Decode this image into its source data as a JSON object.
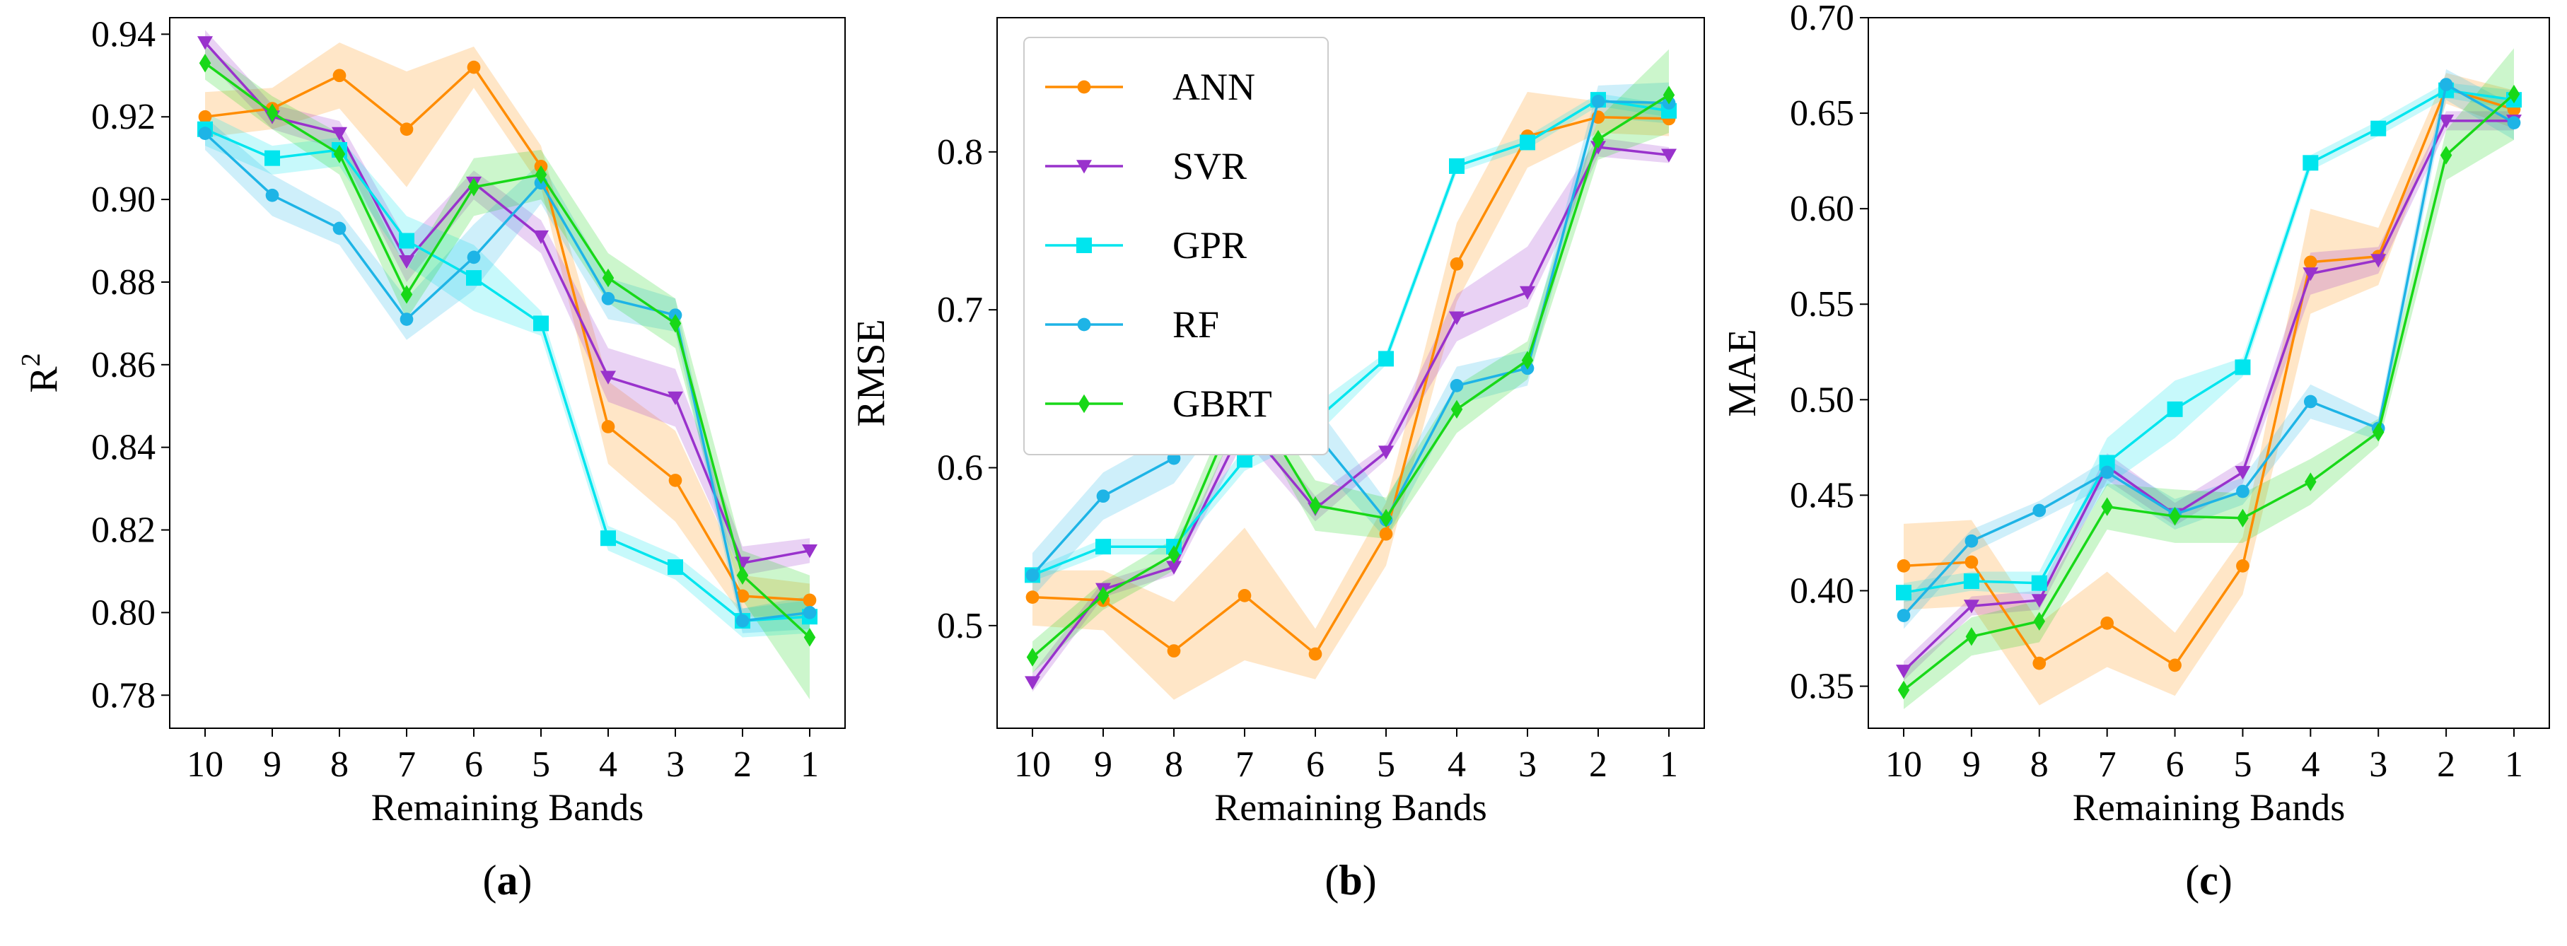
{
  "chart_data": [
    {
      "type": "line",
      "panel_label": "(a)",
      "title": "",
      "xlabel": "Remaining Bands",
      "ylabel_main": "R",
      "ylabel_sup": "2",
      "categories": [
        "10",
        "9",
        "8",
        "7",
        "6",
        "5",
        "4",
        "3",
        "2",
        "1"
      ],
      "ylim": [
        0.772,
        0.944
      ],
      "yticks": [
        0.78,
        0.8,
        0.82,
        0.84,
        0.86,
        0.88,
        0.9,
        0.92,
        0.94
      ],
      "ytick_labels": [
        "0.78",
        "0.80",
        "0.82",
        "0.84",
        "0.86",
        "0.88",
        "0.90",
        "0.92",
        "0.94"
      ],
      "series": [
        {
          "name": "ANN",
          "color": "#ff8c00",
          "marker": "circle",
          "values": [
            0.92,
            0.922,
            0.93,
            0.917,
            0.932,
            0.908,
            0.845,
            0.832,
            0.804,
            0.803
          ],
          "lower": [
            0.915,
            0.917,
            0.922,
            0.903,
            0.927,
            0.903,
            0.836,
            0.822,
            0.799,
            0.799
          ],
          "upper": [
            0.926,
            0.927,
            0.938,
            0.931,
            0.937,
            0.913,
            0.856,
            0.844,
            0.809,
            0.807
          ]
        },
        {
          "name": "SVR",
          "color": "#9932cc",
          "marker": "triangle-down",
          "values": [
            0.938,
            0.92,
            0.916,
            0.885,
            0.904,
            0.891,
            0.857,
            0.852,
            0.812,
            0.815
          ],
          "lower": [
            0.934,
            0.917,
            0.912,
            0.88,
            0.9,
            0.887,
            0.851,
            0.845,
            0.809,
            0.812
          ],
          "upper": [
            0.941,
            0.923,
            0.919,
            0.89,
            0.907,
            0.895,
            0.864,
            0.859,
            0.816,
            0.818
          ]
        },
        {
          "name": "GPR",
          "color": "#00e5ee",
          "marker": "square",
          "values": [
            0.917,
            0.91,
            0.912,
            0.89,
            0.881,
            0.87,
            0.818,
            0.811,
            0.798,
            0.799
          ],
          "lower": [
            0.913,
            0.906,
            0.908,
            0.884,
            0.873,
            0.867,
            0.815,
            0.808,
            0.794,
            0.795
          ],
          "upper": [
            0.921,
            0.913,
            0.915,
            0.896,
            0.889,
            0.873,
            0.821,
            0.814,
            0.801,
            0.803
          ]
        },
        {
          "name": "RF",
          "color": "#1eb4e6",
          "marker": "circle",
          "values": [
            0.916,
            0.901,
            0.893,
            0.871,
            0.886,
            0.904,
            0.876,
            0.872,
            0.798,
            0.8
          ],
          "lower": [
            0.912,
            0.896,
            0.889,
            0.866,
            0.878,
            0.899,
            0.871,
            0.868,
            0.795,
            0.796
          ],
          "upper": [
            0.92,
            0.906,
            0.897,
            0.876,
            0.894,
            0.909,
            0.881,
            0.876,
            0.801,
            0.804
          ]
        },
        {
          "name": "GBRT",
          "color": "#18d818",
          "marker": "diamond",
          "values": [
            0.933,
            0.921,
            0.911,
            0.877,
            0.903,
            0.906,
            0.881,
            0.87,
            0.809,
            0.794
          ],
          "lower": [
            0.929,
            0.917,
            0.906,
            0.871,
            0.896,
            0.9,
            0.875,
            0.864,
            0.803,
            0.779
          ],
          "upper": [
            0.937,
            0.925,
            0.916,
            0.883,
            0.91,
            0.912,
            0.887,
            0.876,
            0.815,
            0.809
          ]
        }
      ]
    },
    {
      "type": "line",
      "panel_label": "(b)",
      "title": "",
      "xlabel": "Remaining Bands",
      "ylabel_main": "RMSE",
      "ylabel_sup": "",
      "categories": [
        "10",
        "9",
        "8",
        "7",
        "6",
        "5",
        "4",
        "3",
        "2",
        "1"
      ],
      "ylim": [
        0.435,
        0.885
      ],
      "yticks": [
        0.5,
        0.6,
        0.7,
        0.8
      ],
      "ytick_labels": [
        "0.5",
        "0.6",
        "0.7",
        "0.8"
      ],
      "legend": {
        "position": "top-left",
        "entries": [
          "ANN",
          "SVR",
          "GPR",
          "RF",
          "GBRT"
        ]
      },
      "series": [
        {
          "name": "ANN",
          "color": "#ff8c00",
          "marker": "circle",
          "values": [
            0.518,
            0.516,
            0.484,
            0.519,
            0.482,
            0.558,
            0.729,
            0.81,
            0.822,
            0.821
          ],
          "lower": [
            0.5,
            0.497,
            0.453,
            0.478,
            0.466,
            0.538,
            0.705,
            0.79,
            0.812,
            0.81
          ],
          "upper": [
            0.535,
            0.535,
            0.515,
            0.562,
            0.498,
            0.578,
            0.755,
            0.838,
            0.832,
            0.832
          ]
        },
        {
          "name": "SVR",
          "color": "#9932cc",
          "marker": "triangle-down",
          "values": [
            0.464,
            0.523,
            0.537,
            0.628,
            0.574,
            0.61,
            0.695,
            0.711,
            0.803,
            0.798
          ],
          "lower": [
            0.458,
            0.518,
            0.532,
            0.618,
            0.566,
            0.605,
            0.68,
            0.702,
            0.797,
            0.793
          ],
          "upper": [
            0.47,
            0.528,
            0.542,
            0.638,
            0.582,
            0.615,
            0.71,
            0.74,
            0.809,
            0.803
          ]
        },
        {
          "name": "GPR",
          "color": "#00e5ee",
          "marker": "square",
          "values": [
            0.532,
            0.55,
            0.55,
            0.605,
            0.63,
            0.669,
            0.791,
            0.806,
            0.833,
            0.826
          ],
          "lower": [
            0.528,
            0.545,
            0.545,
            0.598,
            0.62,
            0.665,
            0.787,
            0.802,
            0.829,
            0.822
          ],
          "upper": [
            0.536,
            0.555,
            0.555,
            0.612,
            0.64,
            0.673,
            0.795,
            0.81,
            0.837,
            0.83
          ]
        },
        {
          "name": "RF",
          "color": "#1eb4e6",
          "marker": "circle",
          "values": [
            0.532,
            0.582,
            0.606,
            0.665,
            0.622,
            0.567,
            0.652,
            0.663,
            0.832,
            0.831
          ],
          "lower": [
            0.518,
            0.567,
            0.59,
            0.65,
            0.605,
            0.555,
            0.64,
            0.652,
            0.822,
            0.818
          ],
          "upper": [
            0.546,
            0.597,
            0.622,
            0.68,
            0.64,
            0.579,
            0.664,
            0.674,
            0.842,
            0.844
          ]
        },
        {
          "name": "GBRT",
          "color": "#18d818",
          "marker": "diamond",
          "values": [
            0.48,
            0.519,
            0.545,
            0.65,
            0.576,
            0.568,
            0.637,
            0.668,
            0.808,
            0.836
          ],
          "lower": [
            0.47,
            0.51,
            0.535,
            0.64,
            0.56,
            0.555,
            0.622,
            0.656,
            0.795,
            0.812
          ],
          "upper": [
            0.49,
            0.528,
            0.555,
            0.66,
            0.592,
            0.581,
            0.652,
            0.68,
            0.821,
            0.865
          ]
        }
      ]
    },
    {
      "type": "line",
      "panel_label": "(c)",
      "title": "",
      "xlabel": "Remaining Bands",
      "ylabel_main": "MAE",
      "ylabel_sup": "",
      "categories": [
        "10",
        "9",
        "8",
        "7",
        "6",
        "5",
        "4",
        "3",
        "2",
        "1"
      ],
      "ylim": [
        0.328,
        0.7
      ],
      "yticks": [
        0.35,
        0.4,
        0.45,
        0.5,
        0.55,
        0.6,
        0.65,
        0.7
      ],
      "ytick_labels": [
        "0.35",
        "0.40",
        "0.45",
        "0.50",
        "0.55",
        "0.60",
        "0.65",
        "0.70"
      ],
      "series": [
        {
          "name": "ANN",
          "color": "#ff8c00",
          "marker": "circle",
          "values": [
            0.413,
            0.415,
            0.362,
            0.383,
            0.361,
            0.413,
            0.572,
            0.575,
            0.663,
            0.652
          ],
          "lower": [
            0.39,
            0.392,
            0.34,
            0.36,
            0.345,
            0.398,
            0.545,
            0.56,
            0.655,
            0.642
          ],
          "upper": [
            0.435,
            0.437,
            0.383,
            0.41,
            0.378,
            0.428,
            0.6,
            0.59,
            0.671,
            0.662
          ]
        },
        {
          "name": "SVR",
          "color": "#9932cc",
          "marker": "triangle-down",
          "values": [
            0.358,
            0.392,
            0.395,
            0.465,
            0.44,
            0.462,
            0.566,
            0.573,
            0.646,
            0.646
          ],
          "lower": [
            0.353,
            0.387,
            0.39,
            0.458,
            0.434,
            0.456,
            0.555,
            0.566,
            0.641,
            0.641
          ],
          "upper": [
            0.363,
            0.397,
            0.4,
            0.472,
            0.446,
            0.468,
            0.577,
            0.58,
            0.651,
            0.651
          ]
        },
        {
          "name": "GPR",
          "color": "#00e5ee",
          "marker": "square",
          "values": [
            0.399,
            0.405,
            0.404,
            0.467,
            0.495,
            0.517,
            0.624,
            0.642,
            0.662,
            0.657
          ],
          "lower": [
            0.394,
            0.4,
            0.398,
            0.455,
            0.48,
            0.512,
            0.62,
            0.638,
            0.658,
            0.652
          ],
          "upper": [
            0.404,
            0.41,
            0.41,
            0.48,
            0.51,
            0.522,
            0.628,
            0.646,
            0.666,
            0.662
          ]
        },
        {
          "name": "RF",
          "color": "#1eb4e6",
          "marker": "circle",
          "values": [
            0.387,
            0.426,
            0.442,
            0.462,
            0.44,
            0.452,
            0.499,
            0.485,
            0.665,
            0.645
          ],
          "lower": [
            0.38,
            0.42,
            0.437,
            0.455,
            0.432,
            0.445,
            0.49,
            0.479,
            0.657,
            0.636
          ],
          "upper": [
            0.394,
            0.432,
            0.447,
            0.469,
            0.448,
            0.459,
            0.508,
            0.491,
            0.673,
            0.654
          ]
        },
        {
          "name": "GBRT",
          "color": "#18d818",
          "marker": "diamond",
          "values": [
            0.348,
            0.376,
            0.384,
            0.444,
            0.439,
            0.438,
            0.457,
            0.483,
            0.628,
            0.66
          ],
          "lower": [
            0.338,
            0.366,
            0.373,
            0.432,
            0.425,
            0.425,
            0.445,
            0.476,
            0.615,
            0.636
          ],
          "upper": [
            0.358,
            0.386,
            0.395,
            0.456,
            0.453,
            0.451,
            0.469,
            0.49,
            0.641,
            0.684
          ]
        }
      ]
    }
  ]
}
